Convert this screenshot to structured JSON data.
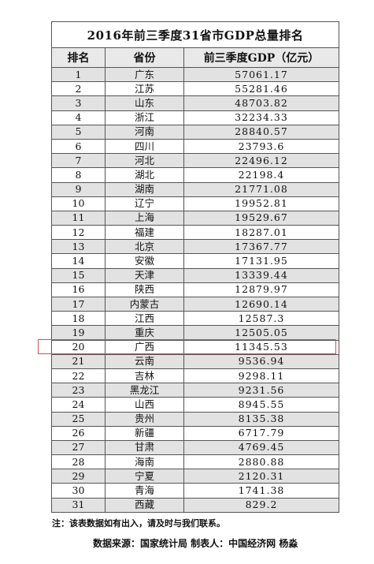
{
  "title": "2016年前三季度31省市GDP总量排名",
  "headers": [
    "排名",
    "省份",
    "前三季度GDP（亿元）"
  ],
  "rows": [
    [
      "1",
      "广东",
      "57061.17"
    ],
    [
      "2",
      "江苏",
      "55281.46"
    ],
    [
      "3",
      "山东",
      "48703.82"
    ],
    [
      "4",
      "浙江",
      "32234.33"
    ],
    [
      "5",
      "河南",
      "28840.57"
    ],
    [
      "6",
      "四川",
      "23793.6"
    ],
    [
      "7",
      "河北",
      "22496.12"
    ],
    [
      "8",
      "湖北",
      "22198.4"
    ],
    [
      "9",
      "湖南",
      "21771.08"
    ],
    [
      "10",
      "辽宁",
      "19952.81"
    ],
    [
      "11",
      "上海",
      "19529.67"
    ],
    [
      "12",
      "福建",
      "18287.01"
    ],
    [
      "13",
      "北京",
      "17367.77"
    ],
    [
      "14",
      "安徽",
      "17131.95"
    ],
    [
      "15",
      "天津",
      "13339.44"
    ],
    [
      "16",
      "陕西",
      "12879.97"
    ],
    [
      "17",
      "内蒙古",
      "12690.14"
    ],
    [
      "18",
      "江西",
      "12587.3"
    ],
    [
      "19",
      "重庆",
      "12505.05"
    ],
    [
      "20",
      "广西",
      "11345.53"
    ],
    [
      "21",
      "云南",
      "9536.94"
    ],
    [
      "22",
      "吉林",
      "9298.11"
    ],
    [
      "23",
      "黑龙江",
      "9231.56"
    ],
    [
      "24",
      "山西",
      "8945.55"
    ],
    [
      "25",
      "贵州",
      "8135.38"
    ],
    [
      "26",
      "新疆",
      "6717.79"
    ],
    [
      "27",
      "甘肃",
      "4769.45"
    ],
    [
      "28",
      "海南",
      "2880.88"
    ],
    [
      "29",
      "宁夏",
      "2120.31"
    ],
    [
      "30",
      "青海",
      "1741.38"
    ],
    [
      "31",
      "西藏",
      "829.2"
    ]
  ],
  "highlight_rank": "20",
  "highlight_color": "#e04a4a",
  "note": "注：该表数据如有出入，请及时与我们联系。",
  "source": "数据来源：国家统计局   制表人：中国经济网 杨淼"
}
